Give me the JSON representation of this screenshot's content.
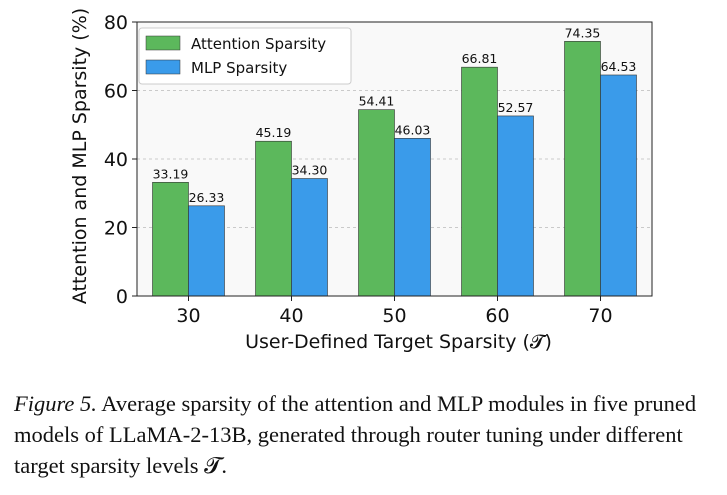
{
  "chart_data": {
    "type": "bar",
    "categories": [
      "30",
      "40",
      "50",
      "60",
      "70"
    ],
    "series": [
      {
        "name": "Attention Sparsity",
        "values": [
          33.19,
          45.19,
          54.41,
          66.81,
          74.35
        ],
        "color": "#5cb85c"
      },
      {
        "name": "MLP Sparsity",
        "values": [
          26.33,
          34.3,
          46.03,
          52.57,
          64.53
        ],
        "color": "#3a9bea"
      }
    ],
    "data_labels": [
      [
        "33.19",
        "45.19",
        "54.41",
        "66.81",
        "74.35"
      ],
      [
        "26.33",
        "34.30",
        "46.03",
        "52.57",
        "64.53"
      ]
    ],
    "xlabel": "User-Defined Target Sparsity (𝓣)",
    "ylabel": "Attention and MLP Sparsity (%)",
    "ylim": [
      0,
      80
    ],
    "yticks": [
      "0",
      "20",
      "40",
      "60",
      "80"
    ],
    "grid": true,
    "legend": "top-left"
  },
  "caption": {
    "figure_label": "Figure 5.",
    "text": " Average sparsity of the attention and MLP modules in five pruned models of LLaMA-2-13B, generated through router tuning under different target sparsity levels 𝓣."
  }
}
